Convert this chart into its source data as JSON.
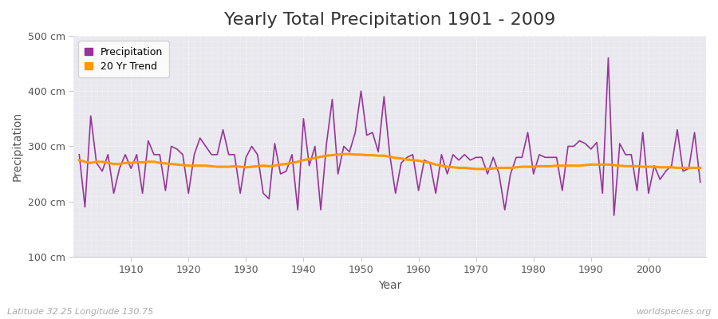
{
  "title": "Yearly Total Precipitation 1901 - 2009",
  "xlabel": "Year",
  "ylabel": "Precipitation",
  "subtitle_left": "Latitude 32.25 Longitude 130.75",
  "subtitle_right": "worldspecies.org",
  "years": [
    1901,
    1902,
    1903,
    1904,
    1905,
    1906,
    1907,
    1908,
    1909,
    1910,
    1911,
    1912,
    1913,
    1914,
    1915,
    1916,
    1917,
    1918,
    1919,
    1920,
    1921,
    1922,
    1923,
    1924,
    1925,
    1926,
    1927,
    1928,
    1929,
    1930,
    1931,
    1932,
    1933,
    1934,
    1935,
    1936,
    1937,
    1938,
    1939,
    1940,
    1941,
    1942,
    1943,
    1944,
    1945,
    1946,
    1947,
    1948,
    1949,
    1950,
    1951,
    1952,
    1953,
    1954,
    1955,
    1956,
    1957,
    1958,
    1959,
    1960,
    1961,
    1962,
    1963,
    1964,
    1965,
    1966,
    1967,
    1968,
    1969,
    1970,
    1971,
    1972,
    1973,
    1974,
    1975,
    1976,
    1977,
    1978,
    1979,
    1980,
    1981,
    1982,
    1983,
    1984,
    1985,
    1986,
    1987,
    1988,
    1989,
    1990,
    1991,
    1992,
    1993,
    1994,
    1995,
    1996,
    1997,
    1998,
    1999,
    2000,
    2001,
    2002,
    2003,
    2004,
    2005,
    2006,
    2007,
    2008,
    2009
  ],
  "precipitation": [
    285,
    190,
    355,
    270,
    255,
    285,
    215,
    260,
    285,
    260,
    285,
    215,
    310,
    285,
    285,
    220,
    300,
    295,
    285,
    215,
    285,
    315,
    300,
    285,
    285,
    330,
    285,
    285,
    215,
    280,
    300,
    285,
    215,
    205,
    305,
    250,
    255,
    285,
    185,
    350,
    265,
    300,
    185,
    305,
    385,
    250,
    300,
    290,
    325,
    400,
    320,
    325,
    290,
    390,
    285,
    215,
    270,
    280,
    285,
    220,
    275,
    270,
    215,
    285,
    250,
    285,
    275,
    285,
    275,
    280,
    280,
    250,
    280,
    250,
    185,
    250,
    280,
    280,
    325,
    250,
    285,
    280,
    280,
    280,
    220,
    300,
    300,
    310,
    305,
    295,
    307,
    215,
    460,
    175,
    305,
    285,
    285,
    220,
    325,
    215,
    265,
    240,
    255,
    265,
    330,
    255,
    260,
    325,
    235
  ],
  "trend": [
    275,
    272,
    270,
    272,
    272,
    270,
    268,
    268,
    270,
    270,
    271,
    271,
    272,
    272,
    270,
    269,
    268,
    267,
    266,
    265,
    265,
    265,
    265,
    264,
    263,
    263,
    263,
    264,
    263,
    262,
    263,
    264,
    265,
    264,
    265,
    267,
    268,
    270,
    272,
    275,
    277,
    279,
    281,
    283,
    284,
    285,
    286,
    286,
    285,
    285,
    284,
    284,
    283,
    283,
    281,
    279,
    278,
    276,
    275,
    274,
    272,
    270,
    267,
    265,
    263,
    262,
    261,
    261,
    260,
    259,
    259,
    259,
    260,
    261,
    261,
    261,
    262,
    263,
    263,
    263,
    264,
    264,
    264,
    265,
    265,
    265,
    265,
    265,
    266,
    267,
    267,
    267,
    267,
    266,
    265,
    264,
    264,
    264,
    263,
    263,
    263,
    262,
    262,
    262,
    261,
    261,
    261,
    261,
    261
  ],
  "precip_color": "#993399",
  "trend_color": "#ff9900",
  "fig_bg_color": "#ffffff",
  "plot_bg_color": "#e8e8ee",
  "grid_color": "#ffffff",
  "spine_color": "#cccccc",
  "tick_color": "#555555",
  "text_color": "#333333",
  "footer_color": "#aaaaaa",
  "ylim": [
    100,
    500
  ],
  "yticks": [
    100,
    200,
    300,
    400,
    500
  ],
  "ytick_labels": [
    "100 cm",
    "200 cm",
    "300 cm",
    "400 cm",
    "500 cm"
  ],
  "title_fontsize": 16,
  "axis_label_fontsize": 10,
  "tick_fontsize": 9,
  "legend_fontsize": 9,
  "footer_fontsize": 8
}
